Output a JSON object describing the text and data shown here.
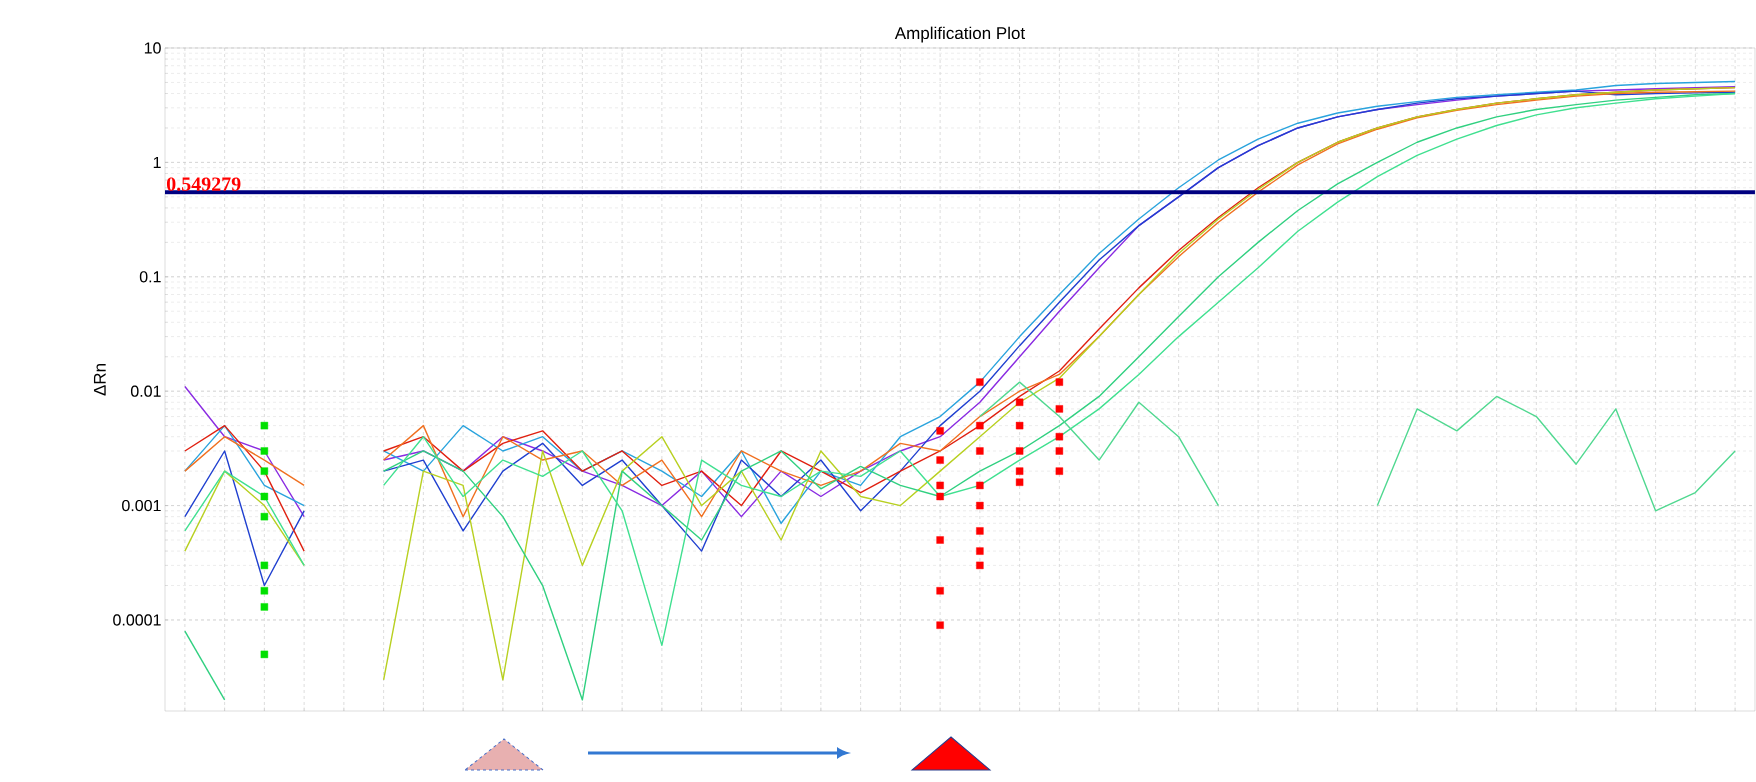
{
  "chart_data": {
    "type": "line",
    "title": "Amplification Plot",
    "ylabel": "ΔRn",
    "log": "y",
    "grid": true,
    "tick_labels": "y",
    "marker": "none",
    "categories": [
      null,
      null,
      null,
      null,
      null,
      null,
      null,
      null,
      null,
      null,
      null,
      null,
      null,
      null,
      null,
      null,
      null,
      null,
      null,
      null,
      null,
      null,
      null,
      null,
      null,
      null,
      null,
      null,
      null,
      null,
      null,
      null,
      null,
      null,
      null,
      null,
      null,
      null,
      null,
      null
    ],
    "ylim": [
      1.6e-05,
      10
    ],
    "yticks": [
      0.0001,
      0.001,
      0.01,
      0.1,
      1,
      10
    ],
    "ref_lines": [
      {
        "axis": "y",
        "value": 0.549279,
        "label": "0.549279",
        "color": "#000080"
      }
    ],
    "series": [
      {
        "color": "#8a2be2",
        "values": [
          0.011,
          0.004,
          0.003,
          0.0008,
          null,
          null,
          null,
          null,
          null,
          null,
          null,
          null,
          null,
          null,
          null,
          null,
          null,
          null,
          null,
          null,
          null,
          null,
          null,
          null,
          null,
          null,
          null,
          null,
          null,
          null,
          null,
          null,
          null,
          null,
          null,
          null,
          null,
          null,
          null,
          null
        ]
      },
      {
        "color": "#29a3dd",
        "values": [
          0.002,
          0.005,
          0.0015,
          0.001,
          null,
          null,
          null,
          null,
          null,
          null,
          null,
          null,
          null,
          null,
          null,
          null,
          null,
          null,
          null,
          null,
          null,
          null,
          null,
          null,
          null,
          null,
          null,
          null,
          null,
          null,
          null,
          null,
          null,
          null,
          null,
          null,
          null,
          null,
          null,
          null
        ]
      },
      {
        "color": "#2040d0",
        "values": [
          0.0008,
          0.003,
          0.0002,
          0.0009,
          null,
          null,
          null,
          null,
          null,
          null,
          null,
          null,
          null,
          null,
          null,
          null,
          null,
          null,
          null,
          null,
          null,
          null,
          null,
          null,
          null,
          null,
          null,
          null,
          null,
          null,
          null,
          null,
          null,
          null,
          null,
          null,
          null,
          null,
          null,
          null
        ]
      },
      {
        "color": "#e02010",
        "values": [
          0.003,
          0.005,
          0.002,
          0.0004,
          null,
          null,
          null,
          null,
          null,
          null,
          null,
          null,
          null,
          null,
          null,
          null,
          null,
          null,
          null,
          null,
          null,
          null,
          null,
          null,
          null,
          null,
          null,
          null,
          null,
          null,
          null,
          null,
          null,
          null,
          null,
          null,
          null,
          null,
          null,
          null
        ]
      },
      {
        "color": "#f07020",
        "values": [
          0.002,
          0.004,
          0.0025,
          0.0015,
          null,
          null,
          null,
          null,
          null,
          null,
          null,
          null,
          null,
          null,
          null,
          null,
          null,
          null,
          null,
          null,
          null,
          null,
          null,
          null,
          null,
          null,
          null,
          null,
          null,
          null,
          null,
          null,
          null,
          null,
          null,
          null,
          null,
          null,
          null,
          null
        ]
      },
      {
        "color": "#b8d020",
        "values": [
          0.0004,
          0.002,
          0.001,
          0.0003,
          null,
          null,
          null,
          null,
          null,
          null,
          null,
          null,
          null,
          null,
          null,
          null,
          null,
          null,
          null,
          null,
          null,
          null,
          null,
          null,
          null,
          null,
          null,
          null,
          null,
          null,
          null,
          null,
          null,
          null,
          null,
          null,
          null,
          null,
          null,
          null
        ]
      },
      {
        "color": "#30d080",
        "values": [
          8e-05,
          2e-05,
          null,
          null,
          null,
          null,
          null,
          null,
          null,
          null,
          null,
          null,
          null,
          null,
          null,
          null,
          null,
          null,
          null,
          null,
          null,
          null,
          null,
          null,
          null,
          null,
          null,
          null,
          null,
          null,
          null,
          null,
          null,
          null,
          null,
          null,
          null,
          null,
          null,
          null
        ]
      },
      {
        "color": "#40e090",
        "values": [
          0.0006,
          0.002,
          0.0012,
          0.0003,
          null,
          null,
          null,
          null,
          null,
          null,
          null,
          null,
          null,
          null,
          null,
          null,
          null,
          null,
          null,
          null,
          null,
          null,
          null,
          null,
          null,
          null,
          null,
          null,
          null,
          null,
          null,
          null,
          null,
          null,
          null,
          null,
          null,
          null,
          null,
          null
        ]
      },
      {
        "color": "#8a2be2",
        "values": [
          null,
          null,
          null,
          null,
          null,
          0.0025,
          0.003,
          0.002,
          0.004,
          0.003,
          0.002,
          0.0015,
          0.001,
          0.002,
          0.0008,
          0.002,
          0.0012,
          0.002,
          0.003,
          0.004,
          0.008,
          0.02,
          0.05,
          0.12,
          0.28,
          0.5,
          0.9,
          1.4,
          2.0,
          2.5,
          2.9,
          3.2,
          3.5,
          3.8,
          4.0,
          4.2,
          4.3,
          4.4,
          4.5,
          4.6
        ]
      },
      {
        "color": "#29a3dd",
        "values": [
          null,
          null,
          null,
          null,
          null,
          0.003,
          0.002,
          0.005,
          0.003,
          0.004,
          0.002,
          0.003,
          0.002,
          0.0012,
          0.003,
          0.0007,
          0.002,
          0.0015,
          0.004,
          0.006,
          0.012,
          0.03,
          0.07,
          0.16,
          0.32,
          0.6,
          1.05,
          1.6,
          2.2,
          2.7,
          3.1,
          3.4,
          3.7,
          3.9,
          4.1,
          4.3,
          4.7,
          4.9,
          5.0,
          5.1
        ]
      },
      {
        "color": "#2040d0",
        "values": [
          null,
          null,
          null,
          null,
          null,
          0.002,
          0.0025,
          0.0006,
          0.002,
          0.0035,
          0.0015,
          0.0025,
          0.001,
          0.0004,
          0.0025,
          0.0012,
          0.0025,
          0.0009,
          0.002,
          0.005,
          0.01,
          0.025,
          0.06,
          0.14,
          0.28,
          0.5,
          0.9,
          1.4,
          2.0,
          2.5,
          2.9,
          3.3,
          3.6,
          3.8,
          4.0,
          4.2,
          3.9,
          4.0,
          4.05,
          4.1
        ]
      },
      {
        "color": "#e02010",
        "values": [
          null,
          null,
          null,
          null,
          null,
          0.003,
          0.004,
          0.002,
          0.0035,
          0.0045,
          0.002,
          0.003,
          0.0015,
          0.002,
          0.001,
          0.003,
          0.002,
          0.0013,
          0.002,
          0.003,
          0.005,
          0.009,
          0.015,
          0.035,
          0.08,
          0.17,
          0.33,
          0.6,
          1.0,
          1.5,
          2.0,
          2.5,
          2.9,
          3.3,
          3.6,
          3.9,
          4.1,
          4.3,
          4.4,
          4.5
        ]
      },
      {
        "color": "#f07020",
        "values": [
          null,
          null,
          null,
          null,
          null,
          0.0025,
          0.005,
          0.0008,
          0.004,
          0.0025,
          0.003,
          0.0015,
          0.0025,
          0.0008,
          0.003,
          0.002,
          0.0015,
          0.002,
          0.0035,
          0.003,
          0.006,
          0.01,
          0.014,
          0.03,
          0.07,
          0.15,
          0.3,
          0.55,
          0.95,
          1.45,
          1.95,
          2.45,
          2.85,
          3.2,
          3.5,
          3.8,
          4.0,
          4.1,
          4.15,
          4.2
        ]
      },
      {
        "color": "#b8d020",
        "values": [
          null,
          null,
          null,
          null,
          null,
          3e-05,
          0.002,
          0.0015,
          3e-05,
          0.003,
          0.0003,
          0.002,
          0.004,
          0.001,
          0.002,
          0.0005,
          0.003,
          0.0012,
          0.001,
          0.002,
          0.004,
          0.008,
          0.013,
          0.03,
          0.07,
          0.16,
          0.32,
          0.58,
          1.0,
          1.5,
          2.0,
          2.5,
          2.9,
          3.3,
          3.6,
          3.9,
          4.1,
          4.3,
          4.4,
          4.5
        ]
      },
      {
        "color": "#30d080",
        "values": [
          null,
          null,
          null,
          null,
          null,
          0.002,
          0.003,
          0.002,
          0.0008,
          0.0002,
          2e-05,
          0.002,
          0.001,
          0.0005,
          0.002,
          0.003,
          0.0014,
          0.0022,
          0.0015,
          0.0012,
          0.002,
          0.003,
          0.005,
          0.009,
          0.02,
          0.045,
          0.1,
          0.2,
          0.38,
          0.65,
          1.0,
          1.5,
          2.0,
          2.5,
          2.9,
          3.2,
          3.5,
          3.7,
          3.9,
          4.0
        ]
      },
      {
        "color": "#40e090",
        "values": [
          null,
          null,
          null,
          null,
          null,
          0.0015,
          0.004,
          0.0012,
          0.0025,
          0.0018,
          0.003,
          0.0009,
          6e-05,
          0.0025,
          0.0015,
          0.0012,
          0.002,
          0.0018,
          0.003,
          0.0012,
          0.0015,
          0.0025,
          0.004,
          0.007,
          0.014,
          0.03,
          0.06,
          0.12,
          0.25,
          0.45,
          0.75,
          1.15,
          1.6,
          2.1,
          2.6,
          3.0,
          3.3,
          3.6,
          3.8,
          4.0
        ]
      },
      {
        "color": "#50d890",
        "values": [
          null,
          null,
          null,
          null,
          null,
          null,
          null,
          null,
          null,
          null,
          null,
          null,
          null,
          null,
          null,
          null,
          null,
          null,
          null,
          null,
          0.006,
          0.012,
          0.006,
          0.0025,
          0.008,
          0.004,
          0.001,
          null,
          null,
          null,
          null,
          null,
          null,
          null,
          null,
          null,
          null,
          null,
          null,
          null
        ]
      },
      {
        "color": "#50d890",
        "values": [
          null,
          null,
          null,
          null,
          null,
          null,
          null,
          null,
          null,
          null,
          null,
          null,
          null,
          null,
          null,
          null,
          null,
          null,
          null,
          null,
          null,
          null,
          null,
          null,
          null,
          null,
          null,
          null,
          null,
          null,
          0.001,
          0.007,
          0.0045,
          0.009,
          0.006,
          0.0023,
          0.007,
          0.0009,
          0.0013,
          0.003
        ]
      },
      {
        "type": "scatter",
        "marker": "square",
        "color": "#00e000",
        "values": [
          null,
          null,
          0.005,
          null,
          null,
          null,
          null,
          null,
          null,
          null,
          null,
          null,
          null,
          null,
          null,
          null,
          null,
          null,
          null,
          null,
          null,
          null,
          null,
          null,
          null,
          null,
          null,
          null,
          null,
          null,
          null,
          null,
          null,
          null,
          null,
          null,
          null,
          null,
          null,
          null
        ]
      },
      {
        "type": "scatter",
        "marker": "square",
        "color": "#00e000",
        "values": [
          null,
          null,
          0.003,
          null,
          null,
          null,
          null,
          null,
          null,
          null,
          null,
          null,
          null,
          null,
          null,
          null,
          null,
          null,
          null,
          null,
          null,
          null,
          null,
          null,
          null,
          null,
          null,
          null,
          null,
          null,
          null,
          null,
          null,
          null,
          null,
          null,
          null,
          null,
          null,
          null
        ]
      },
      {
        "type": "scatter",
        "marker": "square",
        "color": "#00e000",
        "values": [
          null,
          null,
          0.002,
          null,
          null,
          null,
          null,
          null,
          null,
          null,
          null,
          null,
          null,
          null,
          null,
          null,
          null,
          null,
          null,
          null,
          null,
          null,
          null,
          null,
          null,
          null,
          null,
          null,
          null,
          null,
          null,
          null,
          null,
          null,
          null,
          null,
          null,
          null,
          null,
          null
        ]
      },
      {
        "type": "scatter",
        "marker": "square",
        "color": "#00e000",
        "values": [
          null,
          null,
          0.0012,
          null,
          null,
          null,
          null,
          null,
          null,
          null,
          null,
          null,
          null,
          null,
          null,
          null,
          null,
          null,
          null,
          null,
          null,
          null,
          null,
          null,
          null,
          null,
          null,
          null,
          null,
          null,
          null,
          null,
          null,
          null,
          null,
          null,
          null,
          null,
          null,
          null
        ]
      },
      {
        "type": "scatter",
        "marker": "square",
        "color": "#00e000",
        "values": [
          null,
          null,
          0.0008,
          null,
          null,
          null,
          null,
          null,
          null,
          null,
          null,
          null,
          null,
          null,
          null,
          null,
          null,
          null,
          null,
          null,
          null,
          null,
          null,
          null,
          null,
          null,
          null,
          null,
          null,
          null,
          null,
          null,
          null,
          null,
          null,
          null,
          null,
          null,
          null,
          null
        ]
      },
      {
        "type": "scatter",
        "marker": "square",
        "color": "#00e000",
        "values": [
          null,
          null,
          0.0003,
          null,
          null,
          null,
          null,
          null,
          null,
          null,
          null,
          null,
          null,
          null,
          null,
          null,
          null,
          null,
          null,
          null,
          null,
          null,
          null,
          null,
          null,
          null,
          null,
          null,
          null,
          null,
          null,
          null,
          null,
          null,
          null,
          null,
          null,
          null,
          null,
          null
        ]
      },
      {
        "type": "scatter",
        "marker": "square",
        "color": "#00e000",
        "values": [
          null,
          null,
          0.00018,
          null,
          null,
          null,
          null,
          null,
          null,
          null,
          null,
          null,
          null,
          null,
          null,
          null,
          null,
          null,
          null,
          null,
          null,
          null,
          null,
          null,
          null,
          null,
          null,
          null,
          null,
          null,
          null,
          null,
          null,
          null,
          null,
          null,
          null,
          null,
          null,
          null
        ]
      },
      {
        "type": "scatter",
        "marker": "square",
        "color": "#00e000",
        "values": [
          null,
          null,
          0.00013,
          null,
          null,
          null,
          null,
          null,
          null,
          null,
          null,
          null,
          null,
          null,
          null,
          null,
          null,
          null,
          null,
          null,
          null,
          null,
          null,
          null,
          null,
          null,
          null,
          null,
          null,
          null,
          null,
          null,
          null,
          null,
          null,
          null,
          null,
          null,
          null,
          null
        ]
      },
      {
        "type": "scatter",
        "marker": "square",
        "color": "#00e000",
        "values": [
          null,
          null,
          5e-05,
          null,
          null,
          null,
          null,
          null,
          null,
          null,
          null,
          null,
          null,
          null,
          null,
          null,
          null,
          null,
          null,
          null,
          null,
          null,
          null,
          null,
          null,
          null,
          null,
          null,
          null,
          null,
          null,
          null,
          null,
          null,
          null,
          null,
          null,
          null,
          null,
          null
        ]
      },
      {
        "type": "scatter",
        "marker": "square",
        "color": "#ff0000",
        "values": [
          null,
          null,
          null,
          null,
          null,
          null,
          null,
          null,
          null,
          null,
          null,
          null,
          null,
          null,
          null,
          null,
          null,
          null,
          null,
          0.0045,
          0.012,
          0.008,
          0.012,
          null,
          null,
          null,
          null,
          null,
          null,
          null,
          null,
          null,
          null,
          null,
          null,
          null,
          null,
          null,
          null,
          null
        ]
      },
      {
        "type": "scatter",
        "marker": "square",
        "color": "#ff0000",
        "values": [
          null,
          null,
          null,
          null,
          null,
          null,
          null,
          null,
          null,
          null,
          null,
          null,
          null,
          null,
          null,
          null,
          null,
          null,
          null,
          0.0025,
          0.005,
          0.005,
          0.007,
          null,
          null,
          null,
          null,
          null,
          null,
          null,
          null,
          null,
          null,
          null,
          null,
          null,
          null,
          null,
          null,
          null
        ]
      },
      {
        "type": "scatter",
        "marker": "square",
        "color": "#ff0000",
        "values": [
          null,
          null,
          null,
          null,
          null,
          null,
          null,
          null,
          null,
          null,
          null,
          null,
          null,
          null,
          null,
          null,
          null,
          null,
          null,
          0.0015,
          0.003,
          0.003,
          0.004,
          null,
          null,
          null,
          null,
          null,
          null,
          null,
          null,
          null,
          null,
          null,
          null,
          null,
          null,
          null,
          null,
          null
        ]
      },
      {
        "type": "scatter",
        "marker": "square",
        "color": "#ff0000",
        "values": [
          null,
          null,
          null,
          null,
          null,
          null,
          null,
          null,
          null,
          null,
          null,
          null,
          null,
          null,
          null,
          null,
          null,
          null,
          null,
          0.0012,
          0.0015,
          0.002,
          0.003,
          null,
          null,
          null,
          null,
          null,
          null,
          null,
          null,
          null,
          null,
          null,
          null,
          null,
          null,
          null,
          null,
          null
        ]
      },
      {
        "type": "scatter",
        "marker": "square",
        "color": "#ff0000",
        "values": [
          null,
          null,
          null,
          null,
          null,
          null,
          null,
          null,
          null,
          null,
          null,
          null,
          null,
          null,
          null,
          null,
          null,
          null,
          null,
          0.0005,
          0.001,
          0.0016,
          0.002,
          null,
          null,
          null,
          null,
          null,
          null,
          null,
          null,
          null,
          null,
          null,
          null,
          null,
          null,
          null,
          null,
          null
        ]
      },
      {
        "type": "scatter",
        "marker": "square",
        "color": "#ff0000",
        "values": [
          null,
          null,
          null,
          null,
          null,
          null,
          null,
          null,
          null,
          null,
          null,
          null,
          null,
          null,
          null,
          null,
          null,
          null,
          null,
          0.00018,
          0.0006,
          null,
          null,
          null,
          null,
          null,
          null,
          null,
          null,
          null,
          null,
          null,
          null,
          null,
          null,
          null,
          null,
          null,
          null,
          null
        ]
      },
      {
        "type": "scatter",
        "marker": "square",
        "color": "#ff0000",
        "values": [
          null,
          null,
          null,
          null,
          null,
          null,
          null,
          null,
          null,
          null,
          null,
          null,
          null,
          null,
          null,
          null,
          null,
          null,
          null,
          9e-05,
          0.0004,
          null,
          null,
          null,
          null,
          null,
          null,
          null,
          null,
          null,
          null,
          null,
          null,
          null,
          null,
          null,
          null,
          null,
          null,
          null
        ]
      },
      {
        "type": "scatter",
        "marker": "square",
        "color": "#ff0000",
        "values": [
          null,
          null,
          null,
          null,
          null,
          null,
          null,
          null,
          null,
          null,
          null,
          null,
          null,
          null,
          null,
          null,
          null,
          null,
          null,
          null,
          0.0003,
          null,
          null,
          null,
          null,
          null,
          null,
          null,
          null,
          null,
          null,
          null,
          null,
          null,
          null,
          null,
          null,
          null,
          null,
          null
        ]
      }
    ]
  }
}
